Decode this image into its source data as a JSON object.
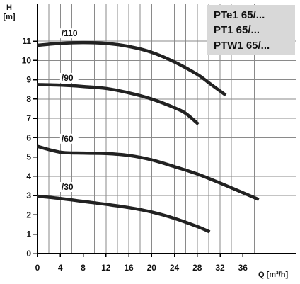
{
  "chart_data": {
    "type": "line",
    "title_lines": [
      "PTe1 65/...",
      "PT1 65/...",
      "PTW1 65/..."
    ],
    "ylabel_lines": [
      "H",
      "[m]"
    ],
    "xlabel": "Q [m³/h]",
    "xlim": [
      0,
      40.5
    ],
    "ylim": [
      0,
      12
    ],
    "x_ticks": [
      0,
      4,
      8,
      12,
      16,
      20,
      24,
      28,
      32,
      36
    ],
    "y_ticks": [
      0,
      1,
      2,
      3,
      4,
      5,
      6,
      7,
      8,
      9,
      10,
      11
    ],
    "grid_x": [
      0,
      2,
      4,
      6,
      8,
      10,
      12,
      14,
      16,
      18,
      20,
      22,
      24,
      26,
      28,
      30,
      32,
      34,
      36,
      38
    ],
    "grid_y": [
      0,
      1,
      2,
      3,
      4,
      5,
      6,
      7,
      8,
      9,
      10,
      11
    ],
    "grid": true,
    "series": [
      {
        "name": "/110",
        "label_at": [
          4.2,
          11.25
        ],
        "points": [
          [
            0,
            10.78
          ],
          [
            4,
            10.88
          ],
          [
            8,
            10.92
          ],
          [
            12,
            10.88
          ],
          [
            16,
            10.72
          ],
          [
            20,
            10.42
          ],
          [
            24,
            9.92
          ],
          [
            28,
            9.28
          ],
          [
            30,
            8.85
          ],
          [
            33,
            8.2
          ]
        ]
      },
      {
        "name": "/90",
        "label_at": [
          4.2,
          8.95
        ],
        "points": [
          [
            0,
            8.75
          ],
          [
            4,
            8.72
          ],
          [
            8,
            8.65
          ],
          [
            12,
            8.55
          ],
          [
            16,
            8.32
          ],
          [
            20,
            8.0
          ],
          [
            24,
            7.55
          ],
          [
            26,
            7.25
          ],
          [
            28.2,
            6.7
          ]
        ]
      },
      {
        "name": "/60",
        "label_at": [
          4.2,
          5.8
        ],
        "points": [
          [
            0,
            5.55
          ],
          [
            4,
            5.25
          ],
          [
            8,
            5.2
          ],
          [
            12,
            5.18
          ],
          [
            16,
            5.08
          ],
          [
            20,
            4.85
          ],
          [
            24,
            4.5
          ],
          [
            28,
            4.12
          ],
          [
            32,
            3.65
          ],
          [
            36,
            3.15
          ],
          [
            38.8,
            2.8
          ]
        ]
      },
      {
        "name": "/30",
        "label_at": [
          4.2,
          3.3
        ],
        "points": [
          [
            0,
            2.97
          ],
          [
            4,
            2.85
          ],
          [
            8,
            2.7
          ],
          [
            12,
            2.55
          ],
          [
            16,
            2.38
          ],
          [
            20,
            2.15
          ],
          [
            24,
            1.82
          ],
          [
            28,
            1.4
          ],
          [
            30.2,
            1.12
          ]
        ]
      }
    ]
  }
}
